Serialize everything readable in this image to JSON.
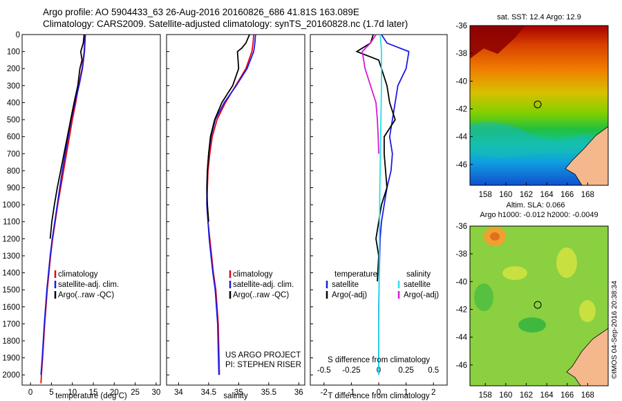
{
  "header": {
    "line1": "Argo profile: AO 5904433_63 26-Aug-2016 20160826_686 41.81S 163.089E",
    "line2": "Climatology: CARS2009. Satellite-adjusted climatology: synTS_20160828.nc (1.7d later)"
  },
  "credits": {
    "project": "US ARGO PROJECT",
    "pi": "PI: STEPHEN RISER",
    "stamp": "©IMOS 04-Sep-2016 20:38:34"
  },
  "colors": {
    "climatology": "#e8000b",
    "satellite": "#1a1ae6",
    "argo": "#000000",
    "satellite_salinity": "#22e0e8",
    "argo_salinity": "#d61ad6",
    "land": "#f4b88c"
  },
  "chart_data": [
    {
      "type": "line",
      "xlabel": "temperature (deg C)",
      "ylabel": "",
      "xlim": [
        -2,
        31
      ],
      "ylim": [
        2060,
        0
      ],
      "xticks": [
        "0",
        "5",
        "10",
        "15",
        "20",
        "25",
        "30"
      ],
      "yticks": [
        "0",
        "100",
        "200",
        "300",
        "400",
        "500",
        "600",
        "700",
        "800",
        "900",
        "1000",
        "1100",
        "1200",
        "1300",
        "1400",
        "1500",
        "1600",
        "1700",
        "1800",
        "1900",
        "2000"
      ],
      "legend": [
        "climatology",
        "satellite-adj. clim.",
        "Argo(..raw -QC)"
      ],
      "legend_position": "lower-center",
      "series": [
        {
          "name": "climatology",
          "color_key": "climatology",
          "x": [
            13.0,
            12.9,
            12.8,
            12.3,
            11.5,
            10.8,
            10.0,
            9.3,
            8.6,
            7.9,
            7.2,
            6.5,
            5.9,
            5.3,
            4.8,
            4.4,
            4.0,
            3.4,
            2.9,
            2.6,
            2.5
          ],
          "y": [
            0,
            50,
            100,
            200,
            300,
            400,
            500,
            600,
            700,
            800,
            900,
            1000,
            1100,
            1200,
            1300,
            1400,
            1500,
            1700,
            1900,
            2000,
            2050
          ]
        },
        {
          "name": "satellite-adj. clim.",
          "color_key": "satellite",
          "x": [
            13.1,
            13.0,
            12.9,
            12.4,
            11.6,
            10.6,
            9.7,
            9.0,
            8.3,
            7.6,
            7.0,
            6.4,
            5.8,
            5.2,
            4.7,
            4.3,
            3.9,
            3.3,
            2.8,
            2.5
          ],
          "y": [
            0,
            50,
            100,
            200,
            300,
            400,
            500,
            600,
            700,
            800,
            900,
            1000,
            1100,
            1200,
            1300,
            1400,
            1500,
            1700,
            1900,
            2000
          ]
        },
        {
          "name": "Argo(..raw -QC)",
          "color_key": "argo",
          "x": [
            12.8,
            12.6,
            12.0,
            12.3,
            11.8,
            11.3,
            10.4,
            9.6,
            8.8,
            8.0,
            7.2,
            6.4,
            5.7,
            5.1,
            4.7
          ],
          "y": [
            0,
            50,
            100,
            150,
            200,
            300,
            400,
            500,
            600,
            700,
            800,
            900,
            1000,
            1100,
            1200
          ]
        }
      ]
    },
    {
      "type": "line",
      "xlabel": "salinity",
      "ylabel": "",
      "xlim": [
        33.8,
        36.1
      ],
      "ylim": [
        2060,
        0
      ],
      "xticks": [
        "34",
        "34.5",
        "35",
        "35.5",
        "36"
      ],
      "legend": [
        "climatology",
        "satellite-adj. clim.",
        "Argo(..raw -QC)"
      ],
      "legend_position": "lower-right",
      "series": [
        {
          "name": "climatology",
          "color_key": "climatology",
          "x": [
            35.25,
            35.24,
            35.22,
            35.12,
            34.95,
            34.78,
            34.64,
            34.56,
            34.52,
            34.49,
            34.48,
            34.47,
            34.49,
            34.52,
            34.55,
            34.58,
            34.62,
            34.66,
            34.68
          ],
          "y": [
            0,
            50,
            100,
            200,
            300,
            400,
            500,
            600,
            700,
            800,
            900,
            1000,
            1100,
            1200,
            1300,
            1400,
            1500,
            1700,
            2000
          ]
        },
        {
          "name": "satellite-adj. clim.",
          "color_key": "satellite",
          "x": [
            35.28,
            35.27,
            35.25,
            35.14,
            34.96,
            34.76,
            34.61,
            34.54,
            34.5,
            34.48,
            34.47,
            34.47,
            34.49,
            34.51,
            34.54,
            34.57,
            34.61,
            34.65,
            34.67
          ],
          "y": [
            0,
            50,
            100,
            200,
            300,
            400,
            500,
            600,
            700,
            800,
            900,
            1000,
            1100,
            1200,
            1300,
            1400,
            1500,
            1700,
            2000
          ]
        },
        {
          "name": "Argo(..raw -QC)",
          "color_key": "argo",
          "x": [
            35.18,
            35.12,
            35.05,
            34.98,
            35.0,
            34.9,
            34.72,
            34.6,
            34.53,
            34.5,
            34.48,
            34.47,
            34.48,
            34.5
          ],
          "y": [
            0,
            50,
            80,
            100,
            200,
            300,
            400,
            500,
            600,
            700,
            800,
            900,
            1000,
            1100
          ]
        }
      ]
    },
    {
      "type": "line",
      "xlabel": "T difference from climatology",
      "title": "S difference from climatology",
      "xlim": [
        -2.5,
        2.5
      ],
      "ylim": [
        2060,
        0
      ],
      "xticks": [
        "-2",
        "-1",
        "0",
        "1",
        "2"
      ],
      "top_xticks": [
        "-0.5",
        "-0.25",
        "0",
        "0.25",
        "0.5"
      ],
      "legend_groups": [
        {
          "heading": "temperature",
          "items": [
            "satellite",
            "Argo(-adj)"
          ]
        },
        {
          "heading": "salinity",
          "items": [
            "satellite",
            "Argo(-adj)"
          ]
        }
      ],
      "legend_position": "lower-center",
      "series": [
        {
          "name": "satellite",
          "group": "temperature",
          "color_key": "satellite",
          "x": [
            0.1,
            0.3,
            1.1,
            1.0,
            0.7,
            0.6,
            0.5,
            0.4,
            0.5,
            0.45,
            0.3,
            0.2,
            0.1,
            0.05,
            0.02,
            0.0,
            0.0
          ],
          "y": [
            0,
            50,
            100,
            200,
            300,
            400,
            500,
            600,
            700,
            800,
            900,
            1000,
            1100,
            1200,
            1400,
            1600,
            2000
          ]
        },
        {
          "name": "Argo(-adj)",
          "group": "temperature",
          "color_key": "argo",
          "x": [
            -0.2,
            -0.3,
            -0.8,
            0.0,
            0.1,
            0.3,
            0.4,
            0.6,
            0.2,
            0.2,
            0.25,
            0.3,
            0.1,
            0.0,
            -0.1,
            0.0,
            -0.05
          ],
          "y": [
            0,
            50,
            100,
            150,
            200,
            300,
            400,
            500,
            600,
            700,
            800,
            900,
            1000,
            1100,
            1200,
            1300,
            1450
          ]
        },
        {
          "name": "satellite",
          "group": "salinity",
          "color_key": "satellite_salinity",
          "x": [
            0.05,
            0.08,
            0.1,
            0.1,
            0.08,
            0.06,
            0.04,
            0.03,
            0.02,
            0.01,
            0.0,
            0.0
          ],
          "y": [
            0,
            50,
            100,
            300,
            500,
            700,
            900,
            1100,
            1300,
            1500,
            1800,
            2000
          ]
        },
        {
          "name": "Argo(-adj)",
          "group": "salinity",
          "color_key": "argo_salinity",
          "x": [
            -0.1,
            -0.3,
            -0.6,
            -0.5,
            -0.3,
            -0.1,
            -0.05,
            -0.02,
            0.0
          ],
          "y": [
            0,
            50,
            100,
            200,
            300,
            400,
            500,
            600,
            700
          ]
        }
      ]
    },
    {
      "type": "heatmap",
      "title": "sat. SST: 12.4  Argo: 12.9",
      "xlim": [
        156.5,
        170
      ],
      "ylim": [
        -47.5,
        -36
      ],
      "xticks": [
        "158",
        "160",
        "162",
        "164",
        "166",
        "168"
      ],
      "yticks": [
        "-36",
        "-38",
        "-40",
        "-42",
        "-44",
        "-46"
      ],
      "marker": {
        "lon": 163.1,
        "lat": -41.8
      }
    },
    {
      "type": "heatmap",
      "title_line1": "Altim. SLA: 0.066",
      "title_line2": "Argo h1000: -0.012  h2000: -0.0049",
      "xlim": [
        156.5,
        170
      ],
      "ylim": [
        -47.5,
        -36
      ],
      "xticks": [
        "158",
        "160",
        "162",
        "164",
        "166",
        "168"
      ],
      "yticks": [
        "-36",
        "-38",
        "-40",
        "-42",
        "-44",
        "-46"
      ],
      "marker": {
        "lon": 163.1,
        "lat": -41.8
      }
    }
  ]
}
